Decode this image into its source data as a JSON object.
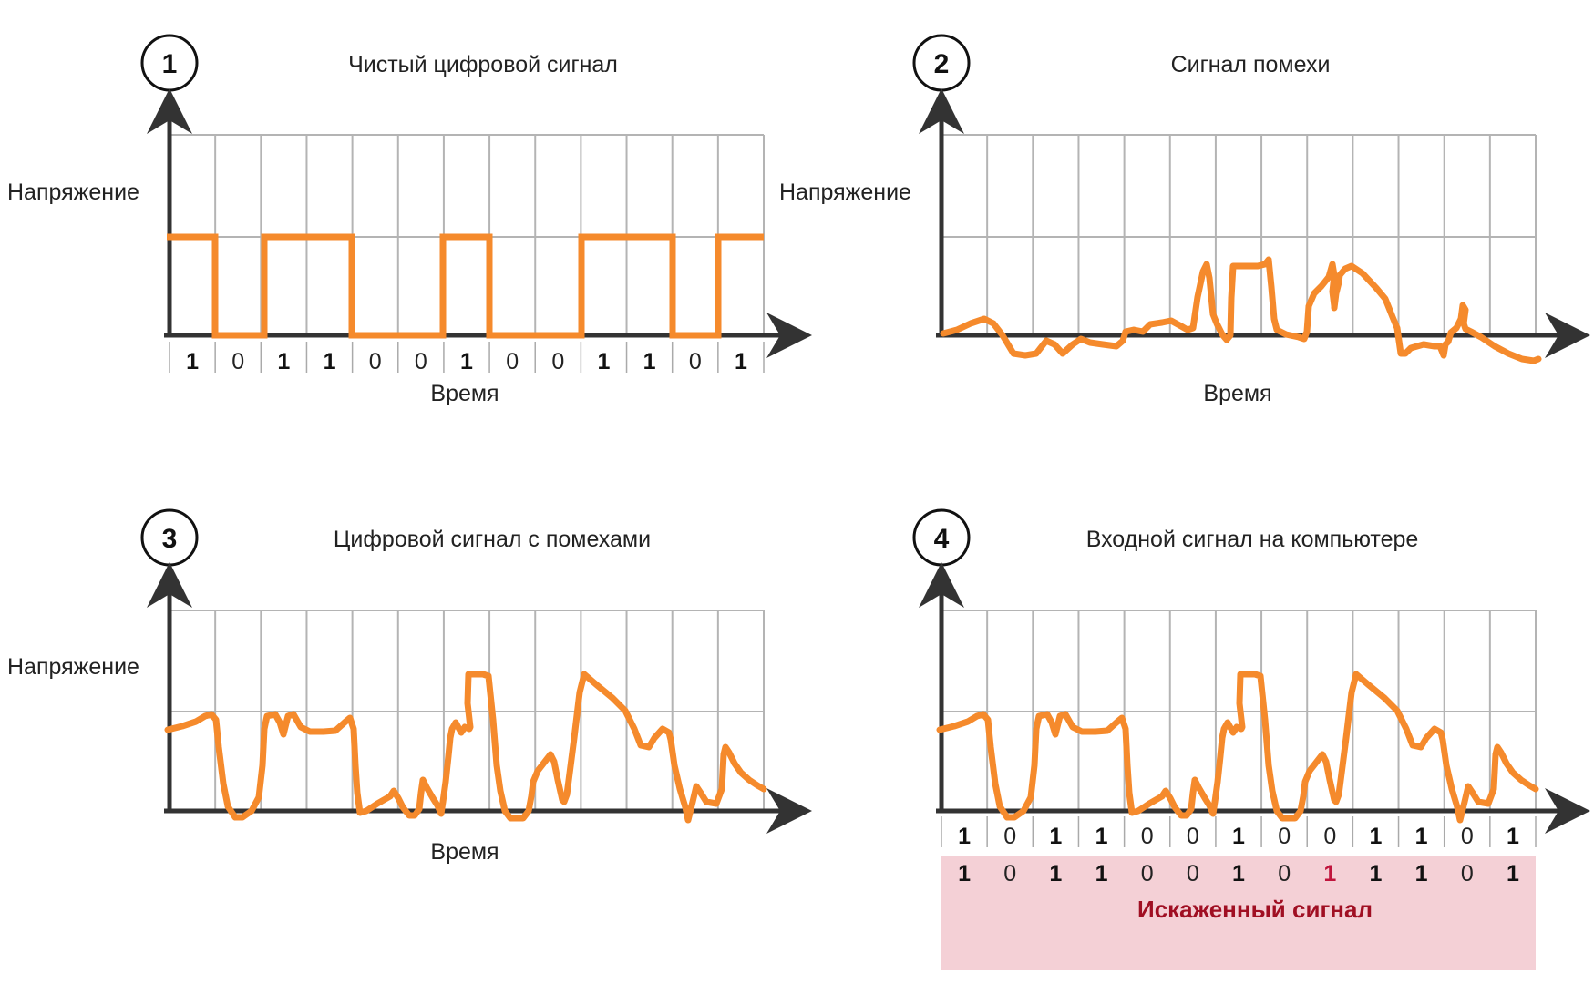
{
  "panels": [
    {
      "number": "1",
      "title": "Чистый цифровой сигнал",
      "ylabel": "Напряжение",
      "xlabel": "Время",
      "bits": [
        "1",
        "0",
        "1",
        "1",
        "0",
        "0",
        "1",
        "0",
        "0",
        "1",
        "1",
        "0",
        "1"
      ],
      "signal": "clean"
    },
    {
      "number": "2",
      "title": "Сигнал помехи",
      "ylabel": "Напряжение",
      "xlabel": "Время",
      "bits": [],
      "signal": "noise"
    },
    {
      "number": "3",
      "title": "Цифровой сигнал с помехами",
      "ylabel": "Напряжение",
      "xlabel": "Время",
      "bits": [],
      "signal": "noisy"
    },
    {
      "number": "4",
      "title": "Входной сигнал на компьютере",
      "ylabel": "",
      "xlabel": "",
      "bits": [
        "1",
        "0",
        "1",
        "1",
        "0",
        "0",
        "1",
        "0",
        "0",
        "1",
        "1",
        "0",
        "1"
      ],
      "received_bits": [
        "1",
        "0",
        "1",
        "1",
        "0",
        "0",
        "1",
        "0",
        "1",
        "1",
        "1",
        "0",
        "1"
      ],
      "error_index": 8,
      "corrupted_label": "Искаженный сигнал",
      "signal": "noisy"
    }
  ],
  "colors": {
    "signal": "#f58a2c",
    "grid": "#b4b4b4",
    "axis": "#333333",
    "corrupted_box": "#f4d0d6",
    "corrupted_text": "#a00f23",
    "error_bit": "#c0143c"
  }
}
